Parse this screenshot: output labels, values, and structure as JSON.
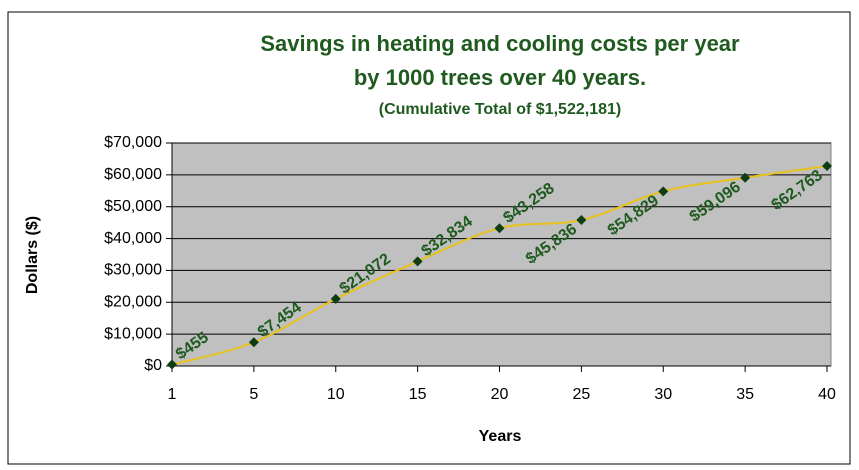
{
  "chart_data": {
    "type": "line",
    "title": "Savings in heating and cooling costs per year",
    "title_line2": "by 1000 trees over 40 years.",
    "subtitle": "(Cumulative Total of $1,522,181)",
    "x_label": "Years",
    "y_label": "Dollars ($)",
    "categories": [
      "1",
      "5",
      "10",
      "15",
      "20",
      "25",
      "30",
      "35",
      "40"
    ],
    "values": [
      455,
      7454,
      21072,
      32834,
      43258,
      45836,
      54829,
      59096,
      62763
    ],
    "value_labels": [
      "$455",
      "$7,454",
      "$21,072",
      "$32,834",
      "$43,258",
      "$45,836",
      "$54,829",
      "$59,096",
      "$62,763"
    ],
    "line_color": "#e8c21a",
    "marker_color": "#0f3d0f",
    "ylim": [
      0,
      70000
    ],
    "yticks": [
      {
        "value": 0,
        "label": "$0"
      },
      {
        "value": 10000,
        "label": "$10,000"
      },
      {
        "value": 20000,
        "label": "$20,000"
      },
      {
        "value": 30000,
        "label": "$30,000"
      },
      {
        "value": 40000,
        "label": "$40,000"
      },
      {
        "value": 50000,
        "label": "$50,000"
      },
      {
        "value": 60000,
        "label": "$60,000"
      },
      {
        "value": 70000,
        "label": "$70,000"
      }
    ],
    "grid": true
  }
}
